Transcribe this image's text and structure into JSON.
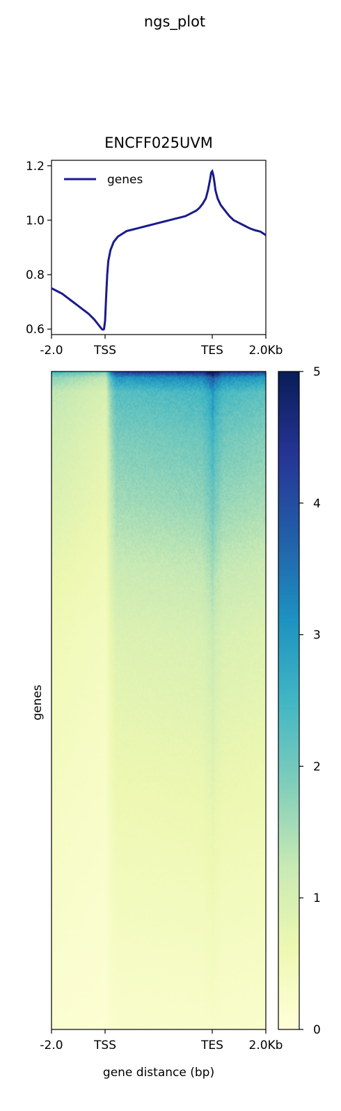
{
  "figure_title": "ngs_plot",
  "chart_data": [
    {
      "type": "line",
      "title": "ENCFF025UVM",
      "xlabel": "",
      "ylabel": "",
      "x_ticks": [
        {
          "pos": 0,
          "label": "-2.0"
        },
        {
          "pos": 50,
          "label": "TSS"
        },
        {
          "pos": 150,
          "label": "TES"
        },
        {
          "pos": 200,
          "label": "2.0Kb"
        }
      ],
      "y_ticks": [
        0.6,
        0.8,
        1.0,
        1.2
      ],
      "xlim": [
        0,
        200
      ],
      "ylim": [
        0.58,
        1.22
      ],
      "legend": {
        "placement": "upper-left",
        "entries": [
          "genes"
        ]
      },
      "color": "#1a1a8c",
      "series": [
        {
          "name": "genes",
          "x": [
            0,
            5,
            10,
            15,
            20,
            25,
            30,
            35,
            40,
            43,
            45,
            47,
            48,
            49,
            50,
            51,
            52,
            53,
            55,
            58,
            62,
            66,
            70,
            75,
            80,
            85,
            90,
            95,
            100,
            105,
            110,
            115,
            120,
            125,
            130,
            135,
            138,
            141,
            144,
            146,
            148,
            149,
            150,
            151,
            152,
            153,
            155,
            158,
            162,
            166,
            170,
            175,
            180,
            185,
            190,
            195,
            200
          ],
          "y": [
            0.75,
            0.74,
            0.73,
            0.715,
            0.7,
            0.685,
            0.67,
            0.655,
            0.635,
            0.62,
            0.61,
            0.6,
            0.598,
            0.6,
            0.63,
            0.72,
            0.8,
            0.85,
            0.89,
            0.92,
            0.94,
            0.95,
            0.96,
            0.965,
            0.97,
            0.975,
            0.98,
            0.985,
            0.99,
            0.995,
            1.0,
            1.005,
            1.01,
            1.015,
            1.025,
            1.035,
            1.045,
            1.06,
            1.08,
            1.11,
            1.15,
            1.175,
            1.18,
            1.165,
            1.14,
            1.11,
            1.08,
            1.055,
            1.035,
            1.015,
            1.0,
            0.99,
            0.98,
            0.97,
            0.963,
            0.958,
            0.945
          ]
        }
      ]
    },
    {
      "type": "heatmap",
      "xlabel": "gene distance (bp)",
      "ylabel": "genes",
      "x_ticks": [
        {
          "pos": 0,
          "label": "-2.0"
        },
        {
          "pos": 50,
          "label": "TSS"
        },
        {
          "pos": 150,
          "label": "TES"
        },
        {
          "pos": 200,
          "label": "2.0Kb"
        }
      ],
      "colormap": "YlGnBu",
      "vmin": 0,
      "vmax": 5,
      "colorbar_ticks": [
        0,
        1,
        2,
        3,
        4,
        5
      ],
      "colormap_stops": [
        "#ffffd9",
        "#edf8b1",
        "#c7e9b4",
        "#7fcdbb",
        "#41b6c4",
        "#1d91c0",
        "#225ea8",
        "#253494",
        "#081d58"
      ],
      "column_profile": {
        "x": [
          0,
          45,
          50,
          55,
          60,
          100,
          140,
          148,
          150,
          152,
          160,
          200
        ],
        "rel": [
          0.55,
          0.42,
          0.4,
          0.75,
          0.95,
          0.98,
          1.02,
          1.18,
          1.28,
          1.15,
          1.0,
          0.92
        ]
      },
      "row_profile": {
        "frac": [
          0.0,
          0.008,
          0.03,
          0.1,
          0.2,
          0.3,
          0.4,
          0.55,
          0.7,
          0.85,
          1.0
        ],
        "value": [
          4.4,
          3.2,
          2.4,
          2.0,
          1.65,
          1.25,
          0.95,
          0.75,
          0.55,
          0.38,
          0.22
        ]
      }
    }
  ]
}
